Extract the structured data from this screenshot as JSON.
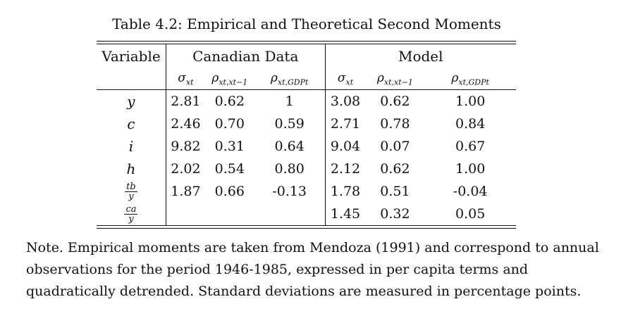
{
  "caption": "Table 4.2: Empirical and Theoretical Second Moments",
  "table": {
    "variable_header": "Variable",
    "group_headers": [
      "Canadian Data",
      "Model"
    ],
    "stat_headers": [
      {
        "base": "σ",
        "sub": "xt"
      },
      {
        "base": "ρ",
        "sub": "xt,xt−1"
      },
      {
        "base": "ρ",
        "sub": "xt,GDPt"
      },
      {
        "base": "σ",
        "sub": "xt"
      },
      {
        "base": "ρ",
        "sub": "xt,xt−1"
      },
      {
        "base": "ρ",
        "sub": "xt,GDPt"
      }
    ],
    "rows": [
      {
        "var": "y",
        "values": [
          "2.81",
          "0.62",
          "1",
          "3.08",
          "0.62",
          "1.00"
        ]
      },
      {
        "var": "c",
        "values": [
          "2.46",
          "0.70",
          "0.59",
          "2.71",
          "0.78",
          "0.84"
        ]
      },
      {
        "var": "i",
        "values": [
          "9.82",
          "0.31",
          "0.64",
          "9.04",
          "0.07",
          "0.67"
        ]
      },
      {
        "var": "h",
        "values": [
          "2.02",
          "0.54",
          "0.80",
          "2.12",
          "0.62",
          "1.00"
        ]
      },
      {
        "var_num": "tb",
        "var_den": "y",
        "values": [
          "1.87",
          "0.66",
          "-0.13",
          "1.78",
          "0.51",
          "-0.04"
        ]
      },
      {
        "var_num": "ca",
        "var_den": "y",
        "values": [
          "",
          "",
          "",
          "1.45",
          "0.32",
          "0.05"
        ]
      }
    ]
  },
  "note": "Note.  Empirical moments are taken from Mendoza (1991) and correspond to annual observations for the period 1946-1985, expressed in per capita terms and quadratically detrended.  Standard deviations are measured in percentage points."
}
